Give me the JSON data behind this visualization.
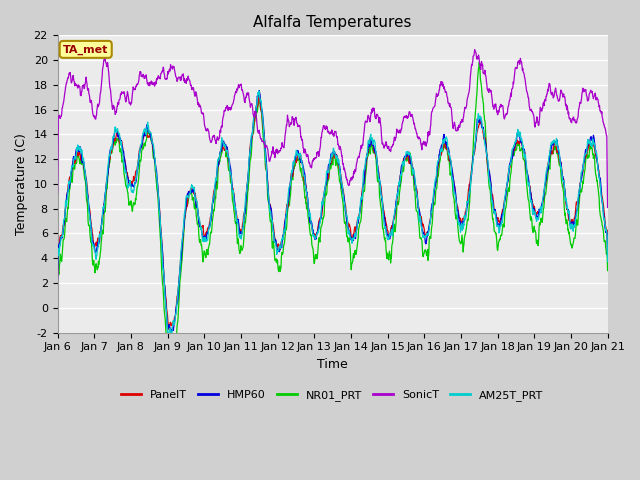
{
  "title": "Alfalfa Temperatures",
  "xlabel": "Time",
  "ylabel": "Temperature (C)",
  "ylim": [
    -2,
    22
  ],
  "xlim": [
    0,
    360
  ],
  "x_ticks": [
    0,
    24,
    48,
    72,
    96,
    120,
    144,
    168,
    192,
    216,
    240,
    264,
    288,
    312,
    336,
    360
  ],
  "x_tick_labels": [
    "Jan 6",
    "Jan 7",
    "Jan 8",
    "Jan 9",
    "Jan 10",
    "Jan 11",
    "Jan 12",
    "Jan 13",
    "Jan 14",
    "Jan 15",
    "Jan 16",
    "Jan 17",
    "Jan 18",
    "Jan 19",
    "Jan 20",
    "Jan 21"
  ],
  "yticks": [
    -2,
    0,
    2,
    4,
    6,
    8,
    10,
    12,
    14,
    16,
    18,
    20,
    22
  ],
  "colors": {
    "PanelT": "#dd0000",
    "HMP60": "#0000dd",
    "NR01_PRT": "#00cc00",
    "SonicT": "#aa00cc",
    "AM25T_PRT": "#00cccc"
  },
  "fig_bg": "#d0d0d0",
  "plot_bg": "#ebebeb",
  "grid_color": "#ffffff",
  "ta_met_label": "TA_met",
  "ta_met_text_color": "#990000",
  "ta_met_bg": "#ffff99",
  "ta_met_edge": "#aa8800",
  "title_fontsize": 11,
  "label_fontsize": 9,
  "tick_fontsize": 8,
  "legend_fontsize": 8
}
